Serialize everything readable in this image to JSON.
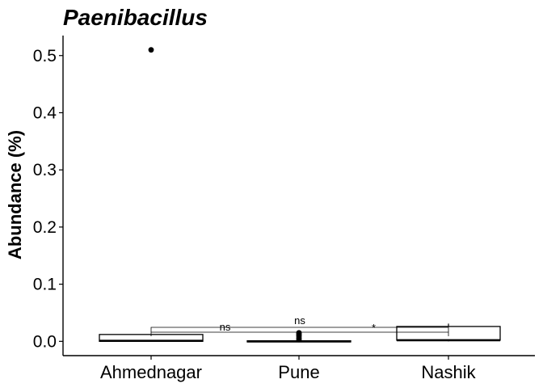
{
  "chart_data": {
    "type": "box",
    "title": "Paenibacillus",
    "xlabel": "",
    "ylabel": "Abundance (%)",
    "ylim": [
      -0.025,
      0.535
    ],
    "yticks": [
      0.0,
      0.1,
      0.2,
      0.3,
      0.4,
      0.5
    ],
    "ytick_labels": [
      "0.0",
      "0.1",
      "0.2",
      "0.3",
      "0.4",
      "0.5"
    ],
    "grid": false,
    "categories": [
      "Ahmednagar",
      "Pune",
      "Nashik"
    ],
    "boxes": [
      {
        "category": "Ahmednagar",
        "q1": 0.0,
        "median": 0.001,
        "q3": 0.012,
        "whisker_low": 0.0,
        "whisker_high": 0.012,
        "outliers": [
          0.51
        ]
      },
      {
        "category": "Pune",
        "q1": -0.001,
        "median": 0.0,
        "q3": 0.001,
        "whisker_low": -0.001,
        "whisker_high": 0.001,
        "outliers": [
          0.003,
          0.006,
          0.009,
          0.011,
          0.013,
          0.015
        ]
      },
      {
        "category": "Nashik",
        "q1": 0.002,
        "median": 0.002,
        "q3": 0.026,
        "whisker_low": 0.0,
        "whisker_high": 0.031,
        "outliers": []
      }
    ],
    "comparisons": [
      {
        "from": "Ahmednagar",
        "to": "Pune",
        "label": "ns"
      },
      {
        "from": "Ahmednagar",
        "to": "Nashik",
        "label": "ns"
      },
      {
        "from": "Pune",
        "to": "Nashik",
        "label": "*"
      }
    ]
  }
}
